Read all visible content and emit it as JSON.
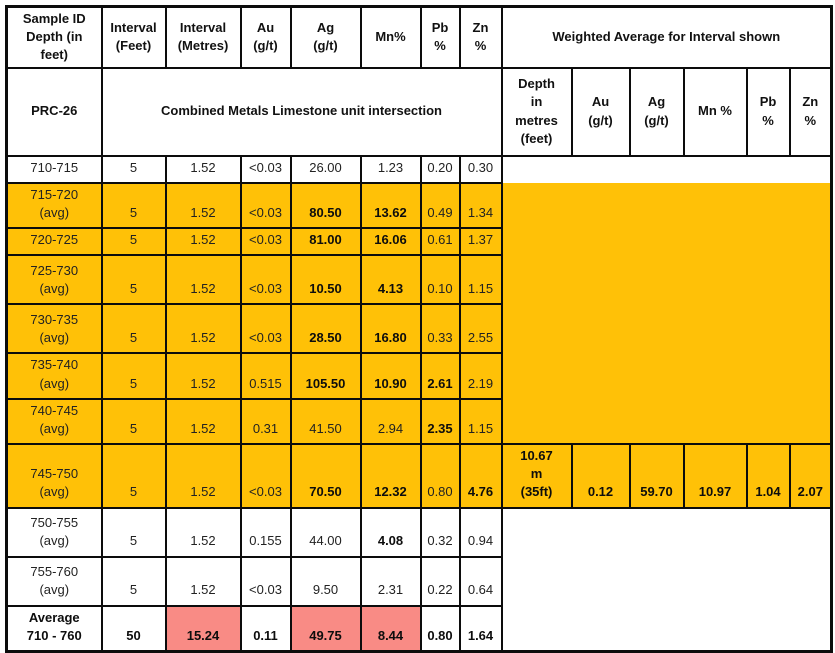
{
  "colors": {
    "highlight_orange": "#FFC107",
    "highlight_pink": "#F98B85",
    "border_black": "#0C0C0C",
    "background_white": "#FFFFFF"
  },
  "table": {
    "header1": {
      "sample_id": "Sample ID\nDepth (in\nfeet)",
      "interval_feet": "Interval\n(Feet)",
      "interval_metres": "Interval\n(Metres)",
      "au": "Au\n(g/t)",
      "ag": "Ag\n(g/t)",
      "mn": "Mn%",
      "pb": "Pb\n%",
      "zn": "Zn\n%",
      "weighted_avg": "Weighted Average for Interval shown"
    },
    "header2": {
      "hole_id": "PRC-26",
      "intersection": "Combined Metals Limestone unit intersection",
      "depth": "Depth\nin\nmetres\n(feet)",
      "au": "Au\n(g/t)",
      "ag": "Ag\n(g/t)",
      "mn": "Mn %",
      "pb": "Pb\n%",
      "zn": "Zn\n%"
    },
    "column_keys": [
      "interval-feet",
      "interval-metres",
      "au",
      "ag",
      "mn",
      "pb",
      "zn"
    ],
    "weighted_column_keys": [
      "depth",
      "au",
      "ag",
      "mn",
      "pb",
      "zn"
    ],
    "rows": [
      {
        "name": "row-710-715",
        "bg": "white",
        "label": "710-715",
        "cells": [
          {
            "t": "5"
          },
          {
            "t": "1.52"
          },
          {
            "t": "<0.03"
          },
          {
            "t": "26.00"
          },
          {
            "t": "1.23"
          },
          {
            "t": "0.20"
          },
          {
            "t": "0.30"
          }
        ],
        "right": {
          "kind": "merged",
          "bg": "white",
          "rows": 1,
          "name": "weighted-empty-top"
        }
      },
      {
        "name": "row-715-720",
        "bg": "orange",
        "label": "715-720\n(avg)",
        "cells": [
          {
            "t": "5"
          },
          {
            "t": "1.52"
          },
          {
            "t": "<0.03"
          },
          {
            "t": "80.50",
            "pink": true,
            "bold": true
          },
          {
            "t": "13.62",
            "pink": true,
            "bold": true
          },
          {
            "t": "0.49"
          },
          {
            "t": "1.34"
          }
        ],
        "right": {
          "kind": "merged",
          "bg": "orange",
          "rows": 6,
          "name": "weighted-orange-block"
        }
      },
      {
        "name": "row-720-725",
        "bg": "orange",
        "label": "720-725",
        "cells": [
          {
            "t": "5"
          },
          {
            "t": "1.52"
          },
          {
            "t": "<0.03"
          },
          {
            "t": "81.00",
            "bold": true
          },
          {
            "t": "16.06",
            "pink": true,
            "bold": true
          },
          {
            "t": "0.61"
          },
          {
            "t": "1.37"
          }
        ],
        "right": null
      },
      {
        "name": "row-725-730",
        "bg": "orange",
        "label": "725-730\n(avg)",
        "cells": [
          {
            "t": "5"
          },
          {
            "t": "1.52"
          },
          {
            "t": "<0.03"
          },
          {
            "t": "10.50",
            "bold": true
          },
          {
            "t": "4.13",
            "bold": true
          },
          {
            "t": "0.10"
          },
          {
            "t": "1.15"
          }
        ],
        "right": null
      },
      {
        "name": "row-730-735",
        "bg": "orange",
        "label": "730-735\n(avg)",
        "cells": [
          {
            "t": "5"
          },
          {
            "t": "1.52"
          },
          {
            "t": "<0.03"
          },
          {
            "t": "28.50",
            "bold": true
          },
          {
            "t": "16.80",
            "pink": true,
            "bold": true
          },
          {
            "t": "0.33"
          },
          {
            "t": "2.55"
          }
        ],
        "right": null
      },
      {
        "name": "row-735-740",
        "bg": "orange",
        "label": "735-740\n(avg)",
        "cells": [
          {
            "t": "5"
          },
          {
            "t": "1.52"
          },
          {
            "t": "0.515"
          },
          {
            "t": "105.50",
            "pink": true,
            "bold": true
          },
          {
            "t": "10.90",
            "pink": true,
            "bold": true
          },
          {
            "t": "2.61",
            "pink": true,
            "bold": true
          },
          {
            "t": "2.19"
          }
        ],
        "right": null
      },
      {
        "name": "row-740-745",
        "bg": "orange",
        "label": "740-745\n(avg)",
        "cells": [
          {
            "t": "5"
          },
          {
            "t": "1.52"
          },
          {
            "t": "0.31"
          },
          {
            "t": "41.50"
          },
          {
            "t": "2.94"
          },
          {
            "t": "2.35",
            "pink": true,
            "bold": true
          },
          {
            "t": "1.15"
          }
        ],
        "right": null
      },
      {
        "name": "row-745-750",
        "bg": "orange",
        "label": "745-750\n(avg)",
        "cells": [
          {
            "t": "5"
          },
          {
            "t": "1.52"
          },
          {
            "t": "<0.03"
          },
          {
            "t": "70.50",
            "pink": true,
            "bold": true
          },
          {
            "t": "12.32",
            "pink": true,
            "bold": true
          },
          {
            "t": "0.80"
          },
          {
            "t": "4.76",
            "pink": true,
            "bold": true
          }
        ],
        "right": {
          "kind": "weighted",
          "cells": [
            {
              "t": "10.67\nm\n(35ft)",
              "pink": true,
              "bold": true
            },
            {
              "t": "0.12",
              "bold": true
            },
            {
              "t": "59.70",
              "pink": true,
              "bold": true
            },
            {
              "t": "10.97",
              "pink": true,
              "bold": true
            },
            {
              "t": "1.04",
              "pink": true,
              "bold": true
            },
            {
              "t": "2.07",
              "pink": true,
              "bold": true
            }
          ]
        }
      },
      {
        "name": "row-750-755",
        "bg": "white",
        "label": "750-755\n(avg)",
        "cells": [
          {
            "t": "5"
          },
          {
            "t": "1.52"
          },
          {
            "t": "0.155"
          },
          {
            "t": "44.00"
          },
          {
            "t": "4.08",
            "bold": true
          },
          {
            "t": "0.32"
          },
          {
            "t": "0.94"
          }
        ],
        "right": {
          "kind": "merged",
          "bg": "white",
          "rows": 3,
          "name": "weighted-empty-bottom"
        }
      },
      {
        "name": "row-755-760",
        "bg": "white",
        "label": "755-760\n(avg)",
        "cells": [
          {
            "t": "5"
          },
          {
            "t": "1.52"
          },
          {
            "t": "<0.03"
          },
          {
            "t": "9.50"
          },
          {
            "t": "2.31"
          },
          {
            "t": "0.22"
          },
          {
            "t": "0.64"
          }
        ],
        "right": null
      },
      {
        "name": "row-average-710-760",
        "bg": "white",
        "label": "Average\n710 - 760",
        "label_bold": true,
        "cells": [
          {
            "t": "50",
            "bold": true
          },
          {
            "t": "15.24",
            "pink": true,
            "bold": true
          },
          {
            "t": "0.11",
            "bold": true
          },
          {
            "t": "49.75",
            "pink": true,
            "bold": true
          },
          {
            "t": "8.44",
            "pink": true,
            "bold": true
          },
          {
            "t": "0.80",
            "bold": true
          },
          {
            "t": "1.64",
            "bold": true
          }
        ],
        "right": null
      }
    ]
  }
}
